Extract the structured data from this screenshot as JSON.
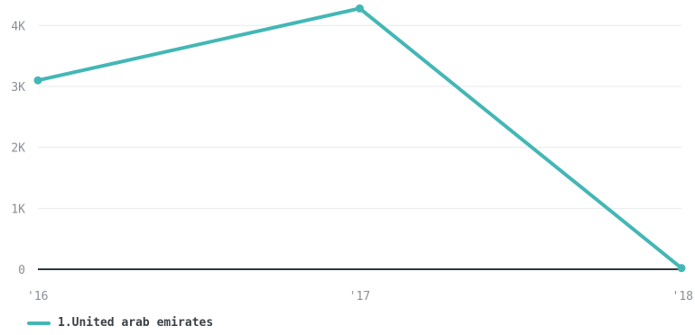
{
  "chart_data": {
    "type": "line",
    "x": [
      "'16",
      "'17",
      "'18"
    ],
    "series": [
      {
        "name": "1.United arab emirates",
        "values": [
          3100,
          4280,
          20
        ],
        "color": "#43b7b5"
      }
    ],
    "y_ticks": [
      {
        "value": 0,
        "label": "0"
      },
      {
        "value": 1000,
        "label": "1K"
      },
      {
        "value": 2000,
        "label": "2K"
      },
      {
        "value": 3000,
        "label": "3K"
      },
      {
        "value": 4000,
        "label": "4K"
      }
    ],
    "ylim": [
      0,
      4300
    ],
    "grid": true,
    "legend_position": "bottom-left",
    "axis_color": "#2f3a40",
    "grid_color": "#e8eaec"
  }
}
